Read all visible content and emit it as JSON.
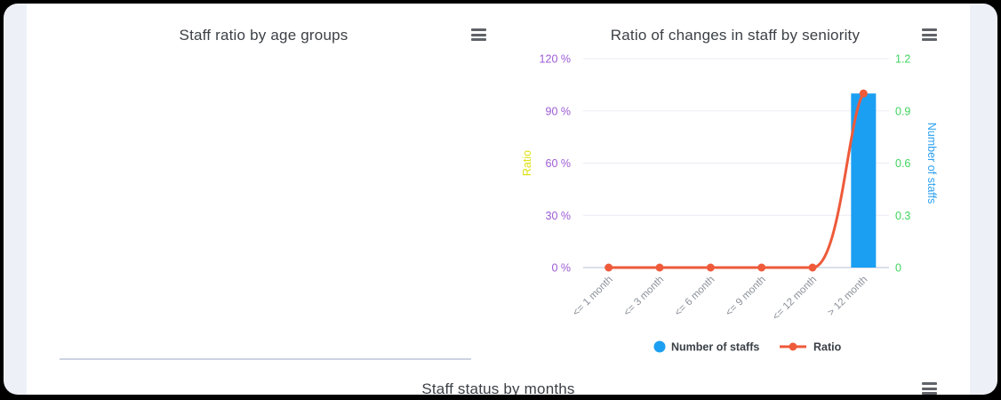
{
  "panels": {
    "age_groups": {
      "title": "Staff ratio by age groups"
    },
    "seniority": {
      "title": "Ratio of changes in staff by seniority"
    },
    "status_months": {
      "title": "Staff status by months"
    }
  },
  "chart_data": [
    {
      "type": "bar",
      "title": "Staff ratio by age groups",
      "categories": [],
      "series": [],
      "grid": false
    },
    {
      "type": "bar",
      "title": "Ratio of changes in staff by seniority",
      "categories": [
        "<= 1 month",
        "<= 3 month",
        "<= 6 month",
        "<= 9 month",
        "<= 12 month",
        "> 12 month"
      ],
      "series": [
        {
          "name": "Number of staffs",
          "type": "bar",
          "axis": "right",
          "values": [
            0,
            0,
            0,
            0,
            0,
            1
          ],
          "color": "#1b9ff2"
        },
        {
          "name": "Ratio",
          "type": "line",
          "axis": "left",
          "values": [
            0,
            0,
            0,
            0,
            0,
            100
          ],
          "color": "#ee5a3a"
        }
      ],
      "left_axis": {
        "label": "Ratio",
        "ticks": [
          "120 %",
          "90 %",
          "60 %",
          "30 %",
          "0 %"
        ],
        "min": 0,
        "max": 120,
        "label_color": "#dfdf0b",
        "tick_color": "#9c5bd4"
      },
      "right_axis": {
        "label": "Number of staffs",
        "ticks": [
          "1.2",
          "0.9",
          "0.6",
          "0.3",
          "0"
        ],
        "min": 0,
        "max": 1.2,
        "label_color": "#2b9ff0",
        "tick_color": "#41d35f"
      },
      "legend": [
        {
          "label": "Number of staffs",
          "marker": "circle",
          "color": "#1b9ff2"
        },
        {
          "label": "Ratio",
          "marker": "line-dot",
          "color": "#ee5a3a"
        }
      ],
      "grid": true,
      "grid_color": "#ebecf3",
      "axis_line_color": "#cdd6e3",
      "x_label_color": "#8a9099",
      "legend_text_color": "#3b4148",
      "legend_position": "bottom"
    },
    {
      "type": "bar",
      "title": "Staff status by months"
    }
  ]
}
